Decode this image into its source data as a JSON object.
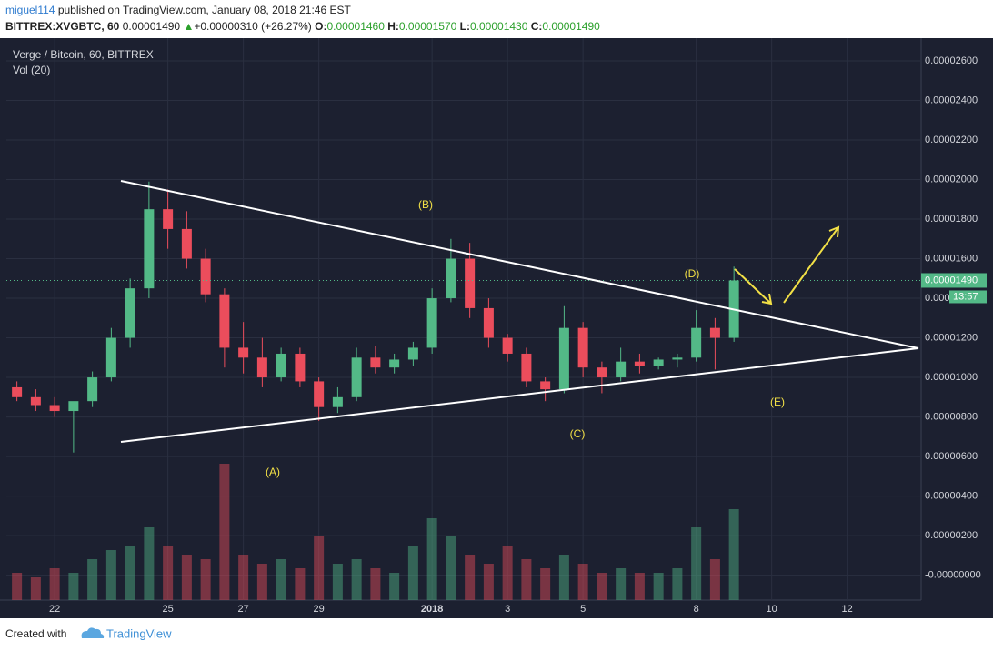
{
  "header": {
    "author": "miguel114",
    "published": "published on TradingView.com, January 08, 2018 21:46 EST",
    "symbol": "BITTREX:XVGBTC, 60",
    "last": "0.00001490",
    "arrow": "▲",
    "change": "+0.00000310 (+26.27%)",
    "o_label": "O:",
    "o": "0.00001460",
    "h_label": "H:",
    "h": "0.00001570",
    "l_label": "L:",
    "l": "0.00001430",
    "c_label": "C:",
    "c": "0.00001490"
  },
  "chart_data": {
    "type": "candlestick",
    "title": "Verge / Bitcoin, 60, BITTREX",
    "subtitle": "Vol (20)",
    "up_color": "#53b987",
    "down_color": "#eb4d5c",
    "x": [
      -1,
      -0.5,
      0,
      0.5,
      1,
      1.5,
      2,
      2.5,
      3,
      3.5,
      4,
      4.5,
      5,
      5.5,
      6,
      6.5,
      7,
      7.5,
      8,
      8.5,
      9,
      9.5,
      10,
      10.5,
      11,
      11.5,
      12,
      12.5,
      13,
      13.5,
      14,
      14.5,
      15,
      15.5,
      16,
      16.5,
      17,
      17.5,
      18
    ],
    "open": [
      9.5e-06,
      9e-06,
      8.6e-06,
      8.3e-06,
      8.8e-06,
      1e-05,
      1.2e-05,
      1.45e-05,
      1.85e-05,
      1.75e-05,
      1.6e-05,
      1.42e-05,
      1.15e-05,
      1.1e-05,
      1e-05,
      1.12e-05,
      9.8e-06,
      8.5e-06,
      9e-06,
      1.1e-05,
      1.05e-05,
      1.09e-05,
      1.15e-05,
      1.4e-05,
      1.6e-05,
      1.35e-05,
      1.2e-05,
      1.12e-05,
      9.8e-06,
      9.4e-06,
      1.25e-05,
      1.05e-05,
      1e-05,
      1.08e-05,
      1.06e-05,
      1.09e-05,
      1.1e-05,
      1.25e-05,
      1.2e-05
    ],
    "high": [
      9.8e-06,
      9.4e-06,
      9e-06,
      8.7e-06,
      1.03e-05,
      1.25e-05,
      1.5e-05,
      1.99e-05,
      1.95e-05,
      1.84e-05,
      1.65e-05,
      1.45e-05,
      1.28e-05,
      1.2e-05,
      1.15e-05,
      1.15e-05,
      1e-05,
      9.5e-06,
      1.15e-05,
      1.16e-05,
      1.12e-05,
      1.18e-05,
      1.45e-05,
      1.7e-05,
      1.68e-05,
      1.4e-05,
      1.22e-05,
      1.15e-05,
      1e-05,
      1.36e-05,
      1.28e-05,
      1.08e-05,
      1.15e-05,
      1.12e-05,
      1.1e-05,
      1.12e-05,
      1.34e-05,
      1.3e-05,
      1.56e-05
    ],
    "low": [
      8.8e-06,
      8.3e-06,
      8e-06,
      6.2e-06,
      8.5e-06,
      9.8e-06,
      1.15e-05,
      1.4e-05,
      1.65e-05,
      1.55e-05,
      1.38e-05,
      1.05e-05,
      1.02e-05,
      9.5e-06,
      9.8e-06,
      9.5e-06,
      7.8e-06,
      8.2e-06,
      8.8e-06,
      1.02e-05,
      1.02e-05,
      1.06e-05,
      1.12e-05,
      1.38e-05,
      1.3e-05,
      1.15e-05,
      1.08e-05,
      9.5e-06,
      8.8e-06,
      9.2e-06,
      1e-05,
      9.2e-06,
      9.8e-06,
      1.02e-05,
      1.04e-05,
      1.05e-05,
      1.08e-05,
      1.04e-05,
      1.18e-05
    ],
    "close": [
      9e-06,
      8.6e-06,
      8.3e-06,
      8.8e-06,
      1e-05,
      1.2e-05,
      1.45e-05,
      1.85e-05,
      1.75e-05,
      1.6e-05,
      1.42e-05,
      1.15e-05,
      1.1e-05,
      1e-05,
      1.12e-05,
      9.8e-06,
      8.5e-06,
      9e-06,
      1.1e-05,
      1.05e-05,
      1.09e-05,
      1.15e-05,
      1.4e-05,
      1.6e-05,
      1.35e-05,
      1.2e-05,
      1.12e-05,
      9.8e-06,
      9.4e-06,
      1.25e-05,
      1.05e-05,
      1e-05,
      1.08e-05,
      1.06e-05,
      1.09e-05,
      1.1e-05,
      1.25e-05,
      1.2e-05,
      1.49e-05
    ],
    "volume": [
      30,
      25,
      35,
      30,
      45,
      55,
      60,
      80,
      60,
      50,
      45,
      150,
      50,
      40,
      45,
      35,
      70,
      40,
      45,
      35,
      30,
      60,
      90,
      70,
      50,
      40,
      60,
      45,
      35,
      50,
      40,
      30,
      35,
      30,
      30,
      35,
      80,
      45,
      100
    ],
    "y2lim": [
      0,
      160
    ],
    "xlim": [
      -1.28,
      22.96
    ],
    "xticks": [
      {
        "value": 0,
        "label": "22"
      },
      {
        "value": 3,
        "label": "25"
      },
      {
        "value": 5,
        "label": "27"
      },
      {
        "value": 7,
        "label": "29"
      },
      {
        "value": 10,
        "label": "2018"
      },
      {
        "value": 12,
        "label": "3"
      },
      {
        "value": 14,
        "label": "5"
      },
      {
        "value": 17,
        "label": "8"
      },
      {
        "value": 19,
        "label": "10"
      },
      {
        "value": 21,
        "label": "12"
      }
    ],
    "ylim": [
      -1.26e-06,
      2.715e-05
    ],
    "yticks": [
      {
        "value": 0,
        "label": "-0.00000000"
      },
      {
        "value": 2e-06,
        "label": "0.00000200"
      },
      {
        "value": 4e-06,
        "label": "0.00000400"
      },
      {
        "value": 6e-06,
        "label": "0.00000600"
      },
      {
        "value": 8e-06,
        "label": "0.00000800"
      },
      {
        "value": 1e-05,
        "label": "0.00001000"
      },
      {
        "value": 1.2e-05,
        "label": "0.00001200"
      },
      {
        "value": 1.4e-05,
        "label": "0.00001400"
      },
      {
        "value": 1.6e-05,
        "label": "0.00001600"
      },
      {
        "value": 1.8e-05,
        "label": "0.00001800"
      },
      {
        "value": 2e-05,
        "label": "0.00002000"
      },
      {
        "value": 2.2e-05,
        "label": "0.00002200"
      },
      {
        "value": 2.4e-05,
        "label": "0.00002400"
      },
      {
        "value": 2.6e-05,
        "label": "0.00002600"
      }
    ],
    "grid": true,
    "last_price": {
      "value": 1.49e-05,
      "label": "0.00001490"
    },
    "countdown": "13:57",
    "annotations": [
      "(A)",
      "(B)",
      "(C)",
      "(D)",
      "(E)"
    ]
  },
  "footer": {
    "created": "Created with",
    "brand": "TradingView"
  }
}
